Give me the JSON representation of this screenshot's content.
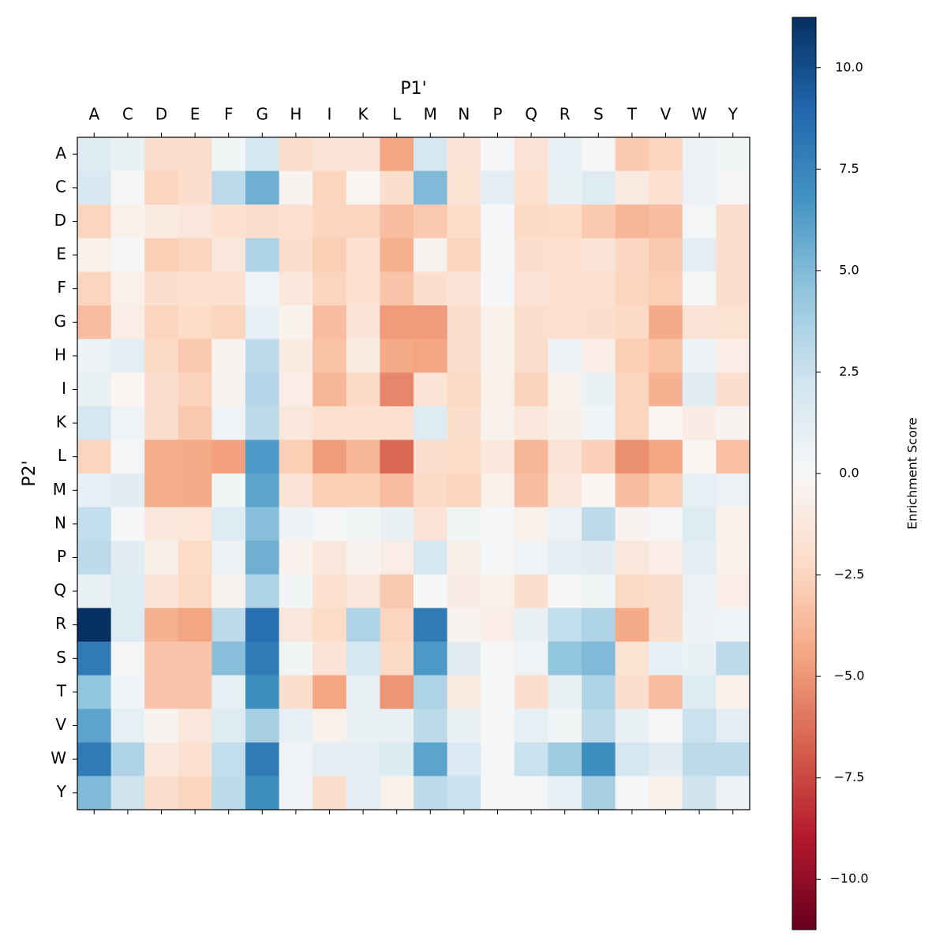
{
  "chart_data": {
    "type": "heatmap",
    "x_label": "P1'",
    "y_label": "P2'",
    "x_categories": [
      "A",
      "C",
      "D",
      "E",
      "F",
      "G",
      "H",
      "I",
      "K",
      "L",
      "M",
      "N",
      "P",
      "Q",
      "R",
      "S",
      "T",
      "V",
      "W",
      "Y"
    ],
    "y_categories": [
      "A",
      "C",
      "D",
      "E",
      "F",
      "G",
      "H",
      "I",
      "K",
      "L",
      "M",
      "N",
      "P",
      "Q",
      "R",
      "S",
      "T",
      "V",
      "W",
      "Y"
    ],
    "values": [
      [
        1.5,
        0.8,
        -2,
        -2,
        0.3,
        2,
        -2,
        -1.5,
        -1.5,
        -4.5,
        2,
        -1.5,
        0.1,
        -1.5,
        1,
        0.2,
        -3,
        -2.5,
        0.7,
        0.3
      ],
      [
        1.8,
        0.2,
        -2.5,
        -2,
        3,
        5.5,
        -0.3,
        -2.5,
        -0.2,
        -2,
        5,
        -1.7,
        1.2,
        -1.8,
        0.8,
        1.5,
        -1,
        -1.8,
        0.7,
        0.2
      ],
      [
        -2.5,
        -0.6,
        -1,
        -1.3,
        -1.8,
        -2,
        -1.8,
        -2.5,
        -2.5,
        -3.5,
        -3,
        -2.2,
        0.1,
        -2.3,
        -2.2,
        -3,
        -3.8,
        -3.5,
        0.2,
        -2
      ],
      [
        -0.6,
        0.1,
        -2.8,
        -2.5,
        -1.3,
        3.5,
        -2,
        -2.8,
        -1.8,
        -4,
        -0.4,
        -2.5,
        0.1,
        -2,
        -1.8,
        -1.5,
        -2.4,
        -3,
        1.2,
        -2
      ],
      [
        -2.5,
        -0.6,
        -2,
        -1.8,
        -1.8,
        0.5,
        -1.2,
        -2.5,
        -1.8,
        -3.2,
        -2,
        -1.5,
        0.1,
        -1.6,
        -1.8,
        -1.8,
        -2.5,
        -2.8,
        0.2,
        -2
      ],
      [
        -3.5,
        -0.8,
        -2.5,
        -2.2,
        -2.5,
        1,
        -0.5,
        -3.5,
        -1.5,
        -4.8,
        -4.8,
        -2,
        -0.5,
        -2,
        -1.8,
        -2,
        -2.3,
        -4.3,
        -1.5,
        -1.7
      ],
      [
        0.6,
        1.2,
        -2.3,
        -3,
        -0.3,
        3,
        -1,
        -3.3,
        -1,
        -4.3,
        -4.5,
        -2,
        -0.5,
        -2,
        0.6,
        -0.8,
        -2.8,
        -3.3,
        0.6,
        -0.8
      ],
      [
        0.9,
        -0.2,
        -2,
        -2.6,
        -0.3,
        3.3,
        -0.8,
        -3.8,
        -2.3,
        -5.5,
        -1.6,
        -2.3,
        -0.6,
        -2.6,
        -0.5,
        0.8,
        -2.5,
        -4,
        1.3,
        -2
      ],
      [
        2,
        0.5,
        -2,
        -3,
        0.5,
        3,
        -1.3,
        -1.8,
        -1.8,
        -1.8,
        1.5,
        -2,
        -0.5,
        -1.2,
        -0.7,
        0.4,
        -2.5,
        -0.2,
        -0.9,
        -0.3
      ],
      [
        -2.5,
        0.2,
        -4.2,
        -4.3,
        -4.7,
        6.5,
        -2.8,
        -4.8,
        -3.8,
        -6.5,
        -2,
        -2.2,
        -1.2,
        -3.8,
        -1.5,
        -2.7,
        -5.2,
        -4.5,
        -0.2,
        -3.4
      ],
      [
        1,
        1.3,
        -4.2,
        -4.3,
        0.3,
        6,
        -1.5,
        -2.8,
        -2.8,
        -3.5,
        -2.3,
        -2.5,
        -0.6,
        -3.5,
        -1.2,
        -0.2,
        -3.5,
        -2.8,
        1,
        0.7
      ],
      [
        2.8,
        0.1,
        -1.2,
        -1.4,
        1.5,
        4.8,
        0.6,
        0.2,
        0.3,
        0.8,
        -1.5,
        0.3,
        0.2,
        -0.6,
        0.7,
        3,
        -0.3,
        0.2,
        1.5,
        -0.6
      ],
      [
        3,
        1.3,
        -0.7,
        -2.2,
        0.6,
        5.5,
        -0.5,
        -1.3,
        -0.3,
        -0.8,
        2,
        -0.7,
        0.1,
        0.5,
        1.2,
        1.3,
        -1.3,
        -0.8,
        1.2,
        -0.5
      ],
      [
        0.8,
        1.5,
        -1.5,
        -2.3,
        -0.3,
        3.5,
        0.3,
        -1.8,
        -1.3,
        -3,
        0.1,
        -0.9,
        -0.6,
        -2,
        0.2,
        0.3,
        -2.3,
        -2,
        0.7,
        -0.8
      ],
      [
        11.24,
        1.5,
        -4,
        -4.5,
        3,
        8.5,
        -1.3,
        -2.2,
        3.5,
        -2.5,
        8,
        -0.4,
        -0.8,
        0.8,
        2.8,
        3.5,
        -4.3,
        -2,
        0.6,
        0.5
      ],
      [
        8,
        0.2,
        -3.2,
        -3.2,
        4.8,
        8,
        0.3,
        -1.5,
        2,
        -2.3,
        6.5,
        1.3,
        0.1,
        0.5,
        4.5,
        5,
        -1.7,
        1,
        0.8,
        3
      ],
      [
        4.5,
        0.4,
        -3.2,
        -3.2,
        1,
        7,
        -2,
        -4.5,
        0.8,
        -5,
        3.5,
        -1.1,
        0.1,
        -2,
        0.8,
        3.5,
        -2,
        -3.5,
        1.5,
        -0.6
      ],
      [
        6,
        1,
        -0.3,
        -1.3,
        1.5,
        3.8,
        1,
        -0.6,
        0.8,
        0.8,
        3,
        0.8,
        0.1,
        1,
        0.3,
        3,
        0.8,
        0.1,
        2.5,
        1.2
      ],
      [
        8,
        3.5,
        -1.2,
        -1.8,
        2.8,
        8,
        0.4,
        1.2,
        1.2,
        1.6,
        6,
        1.7,
        0.1,
        2.5,
        4,
        7,
        2,
        1.3,
        3,
        3
      ],
      [
        5,
        2.3,
        -2,
        -2.5,
        3,
        7,
        0.4,
        -2,
        1.2,
        -0.6,
        3,
        2.5,
        0.1,
        0.2,
        1,
        3.8,
        0.1,
        -0.6,
        2.3,
        0.6
      ]
    ],
    "zlim": [
      -11.24,
      11.24
    ],
    "colorscale": [
      "#67001f",
      "#b2182b",
      "#d6604d",
      "#f4a582",
      "#fddbc7",
      "#f7f7f7",
      "#d1e5f0",
      "#92c5de",
      "#4393c3",
      "#2166ac",
      "#053061"
    ],
    "colorbar_label": "Enrichment Score",
    "colorbar_ticks": [
      {
        "value": -10,
        "label": "−10.0"
      },
      {
        "value": -7.5,
        "label": "−7.5"
      },
      {
        "value": -5,
        "label": "−5.0"
      },
      {
        "value": -2.5,
        "label": "−2.5"
      },
      {
        "value": 0,
        "label": "0.0"
      },
      {
        "value": 2.5,
        "label": "2.5"
      },
      {
        "value": 5,
        "label": "5.0"
      },
      {
        "value": 7.5,
        "label": "7.5"
      },
      {
        "value": 10,
        "label": "10.0"
      }
    ]
  }
}
